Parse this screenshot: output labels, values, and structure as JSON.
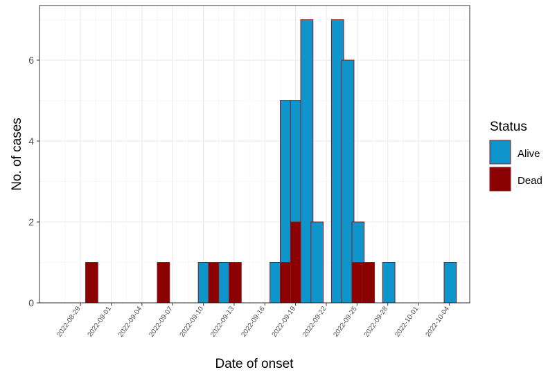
{
  "chart_data": {
    "type": "bar",
    "stacked": true,
    "title": "",
    "xlabel": "Date of onset",
    "ylabel": "No. of cases",
    "x_tick_labels": [
      "2022-08-29",
      "2022-09-01",
      "2022-09-04",
      "2022-09-07",
      "2022-09-10",
      "2022-09-13",
      "2022-09-16",
      "2022-09-19",
      "2022-09-22",
      "2022-09-25",
      "2022-09-28",
      "2022-10-01",
      "2022-10-04"
    ],
    "y_ticks": [
      0,
      2,
      4,
      6
    ],
    "ylim": [
      0,
      7.35
    ],
    "xlim": [
      "2022-08-25",
      "2022-10-06"
    ],
    "grid": true,
    "legend": {
      "title": "Status",
      "position": "right",
      "entries": [
        "Alive",
        "Dead"
      ]
    },
    "colors": {
      "Alive": "#0e96cc",
      "Dead": "#8b0000",
      "outline": "#8b1a1a"
    },
    "bin_start_offset_days": 0.5,
    "bin_width_days": 1.2,
    "bins": [
      {
        "start": "2022-08-29",
        "alive": 0,
        "dead": 1
      },
      {
        "start": "2022-09-05",
        "alive": 0,
        "dead": 1
      },
      {
        "start": "2022-09-09",
        "alive": 1,
        "dead": 0
      },
      {
        "start": "2022-09-10",
        "alive": 0,
        "dead": 1
      },
      {
        "start": "2022-09-11",
        "alive": 1,
        "dead": 0
      },
      {
        "start": "2022-09-12",
        "alive": 0,
        "dead": 1
      },
      {
        "start": "2022-09-16",
        "alive": 1,
        "dead": 0
      },
      {
        "start": "2022-09-17",
        "alive": 4,
        "dead": 1
      },
      {
        "start": "2022-09-18",
        "alive": 3,
        "dead": 2
      },
      {
        "start": "2022-09-19",
        "alive": 7,
        "dead": 0
      },
      {
        "start": "2022-09-20",
        "alive": 2,
        "dead": 0
      },
      {
        "start": "2022-09-22",
        "alive": 7,
        "dead": 0
      },
      {
        "start": "2022-09-23",
        "alive": 6,
        "dead": 0
      },
      {
        "start": "2022-09-24",
        "alive": 1,
        "dead": 1
      },
      {
        "start": "2022-09-25",
        "alive": 0,
        "dead": 1
      },
      {
        "start": "2022-09-27",
        "alive": 1,
        "dead": 0
      },
      {
        "start": "2022-10-03",
        "alive": 1,
        "dead": 0
      }
    ]
  }
}
